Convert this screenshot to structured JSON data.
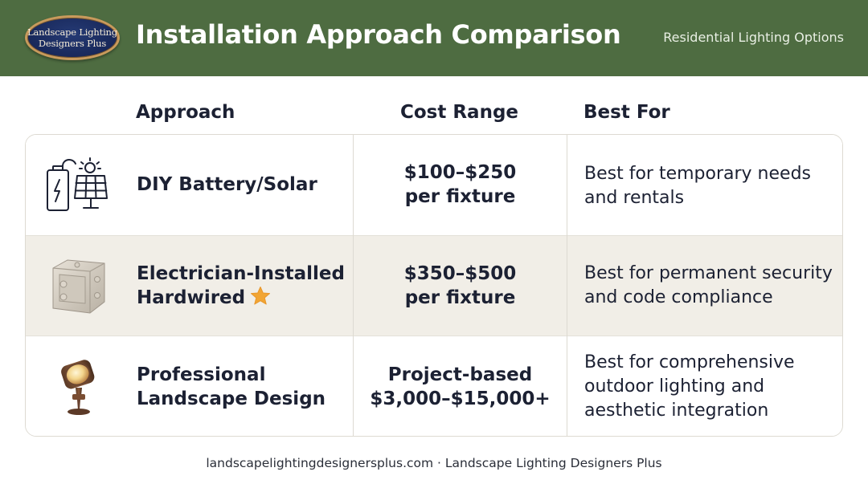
{
  "header": {
    "logo_line1": "Landscape Lighting",
    "logo_line2": "Designers Plus",
    "title": "Installation Approach Comparison",
    "subtitle": "Residential Lighting Options",
    "background_color": "#4e6c41"
  },
  "columns": {
    "approach": "Approach",
    "cost": "Cost Range",
    "best": "Best For"
  },
  "rows": [
    {
      "icon": "battery-solar-icon",
      "approach_line1": "DIY Battery/Solar",
      "approach_line2": "",
      "cost_line1": "$100–$250",
      "cost_line2": "per fixture",
      "best_line1": "Best for temporary needs",
      "best_line2": "and rentals",
      "best_line3": ""
    },
    {
      "icon": "electrical-box-icon",
      "approach_line1": "Electrician-Installed",
      "approach_line2": "Hardwired",
      "recommended": true,
      "cost_line1": "$350–$500",
      "cost_line2": "per fixture",
      "best_line1": "Best for permanent security",
      "best_line2": "and code compliance",
      "best_line3": ""
    },
    {
      "icon": "spotlight-fixture-icon",
      "approach_line1": "Professional",
      "approach_line2": "Landscape Design",
      "cost_line1": "Project-based",
      "cost_line2": "$3,000–$15,000+",
      "best_line1": "Best for comprehensive",
      "best_line2": "outdoor lighting and",
      "best_line3": "aesthetic integration"
    }
  ],
  "footer": {
    "text": "landscapelightingdesignersplus.com · Landscape Lighting Designers Plus"
  },
  "colors": {
    "accent_star": "#f2a533",
    "highlight_row": "#f1eee7"
  }
}
